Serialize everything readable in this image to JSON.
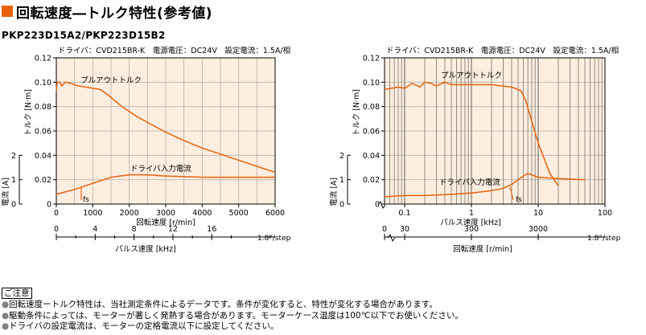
{
  "header": {
    "title": "回転速度―トルク特性(参考値)",
    "model": "PKP223D15A2/PKP223D15B2"
  },
  "colors": {
    "accent": "#e8620c",
    "plot_bg": "#fdeee0",
    "curve": "#e8620c",
    "grid": "#b8b0a8"
  },
  "chart_data": [
    {
      "type": "line",
      "info": "ドライバ：CVD215BR-K　電源電圧：DC24V　設定電流：1.5A/相",
      "ylabel_torque": "トルク [N·m]",
      "ylabel_current": "電流 [A]",
      "xlabel_primary": "回転速度 [r/min]",
      "xlabel_secondary": "パルス速度 [kHz]",
      "xlim": [
        0,
        6000
      ],
      "ylim": [
        0,
        0.12
      ],
      "y_ticks": [
        "0",
        "0.02",
        "0.04",
        "0.06",
        "0.08",
        "0.10",
        "0.12"
      ],
      "current_ticks": [
        "0",
        "1",
        "2"
      ],
      "x_ticks": [
        "0",
        "1000",
        "2000",
        "3000",
        "4000",
        "5000",
        "6000"
      ],
      "x2_ticks": [
        "0",
        "4",
        "8",
        "12",
        "16"
      ],
      "x2_suffix": "1.8°/step",
      "annotations": [
        "プルアウトトルク",
        "ドライバ入力電流",
        "fs"
      ],
      "series": [
        {
          "name": "プルアウトトルク",
          "x": [
            0,
            20,
            50,
            100,
            150,
            250,
            400,
            600,
            800,
            1000,
            1200,
            1400,
            1600,
            1800,
            2000,
            2200,
            2500,
            3000,
            3500,
            4000,
            4500,
            5000,
            5500,
            6000
          ],
          "y": [
            0.093,
            0.099,
            0.1,
            0.1,
            0.097,
            0.1,
            0.099,
            0.097,
            0.096,
            0.095,
            0.094,
            0.09,
            0.085,
            0.08,
            0.076,
            0.072,
            0.067,
            0.059,
            0.052,
            0.046,
            0.041,
            0.036,
            0.031,
            0.026
          ]
        },
        {
          "name": "ドライバ入力電流",
          "x": [
            0,
            500,
            1000,
            1500,
            2000,
            2500,
            3000,
            4000,
            5000,
            6000
          ],
          "y": [
            0.008,
            0.012,
            0.017,
            0.022,
            0.024,
            0.024,
            0.023,
            0.022,
            0.022,
            0.022
          ]
        }
      ]
    },
    {
      "type": "line",
      "info": "ドライバ：CVD215BR-K　電源電圧：DC24V　設定電流：1.5A/相",
      "ylabel_torque": "トルク [N·m]",
      "ylabel_current": "電流 [A]",
      "xlabel_primary": "パルス速度 [kHz]",
      "xlabel_secondary": "回転速度 [r/min]",
      "xscale": "log",
      "xlim": [
        0.05,
        100
      ],
      "ylim": [
        0,
        0.12
      ],
      "y_ticks": [
        "0",
        "0.02",
        "0.04",
        "0.06",
        "0.08",
        "0.10",
        "0.12"
      ],
      "current_ticks": [
        "0",
        "1",
        "2"
      ],
      "x_ticks": [
        "0.1",
        "1",
        "10",
        "100"
      ],
      "x2_ticks": [
        "0",
        "30",
        "300",
        "3000"
      ],
      "x2_suffix": "1.8°/step",
      "annotations": [
        "プルアウトトルク",
        "ドライバ入力電流",
        "fs"
      ],
      "series": [
        {
          "name": "プルアウトトルク",
          "x": [
            0.05,
            0.08,
            0.1,
            0.13,
            0.17,
            0.2,
            0.25,
            0.3,
            0.4,
            0.5,
            1,
            2,
            4,
            5.5,
            6.5,
            8,
            10,
            15,
            20
          ],
          "y": [
            0.094,
            0.096,
            0.095,
            0.099,
            0.096,
            0.1,
            0.099,
            0.097,
            0.1,
            0.098,
            0.098,
            0.098,
            0.096,
            0.093,
            0.085,
            0.068,
            0.05,
            0.025,
            0.015
          ]
        },
        {
          "name": "ドライバ入力電流",
          "x": [
            0.05,
            0.1,
            0.2,
            0.5,
            1,
            2,
            3,
            4,
            5,
            6,
            7,
            8,
            10,
            20,
            50
          ],
          "y": [
            0.006,
            0.007,
            0.007,
            0.008,
            0.009,
            0.011,
            0.013,
            0.016,
            0.02,
            0.023,
            0.025,
            0.024,
            0.022,
            0.021,
            0.02
          ]
        }
      ]
    }
  ],
  "notes": {
    "heading": "ご注意",
    "items": [
      "回転速度ートルク特性は、当社測定条件によるデータです。条件が変化すると、特性が変化する場合があります。",
      "駆動条件によっては、モーターが著しく発熱する場合があります。モーターケース温度は100℃以下でお使いください。",
      "ドライバの設定電流は、モーターの定格電流以下に設定してください。"
    ]
  }
}
